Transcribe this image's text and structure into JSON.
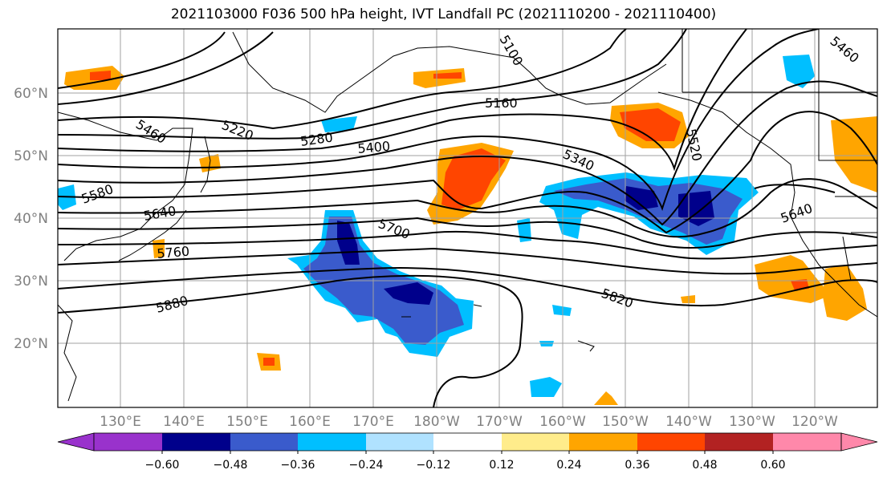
{
  "title": "2021103000 F036 500 hPa height, IVT Landfall PC (2021110200 - 2021110400)",
  "map": {
    "lat_labels": [
      "60°N",
      "50°N",
      "40°N",
      "30°N",
      "20°N"
    ],
    "lon_labels": [
      "130°E",
      "140°E",
      "150°E",
      "160°E",
      "170°E",
      "180°W",
      "170°W",
      "160°W",
      "150°W",
      "140°W",
      "130°W",
      "120°W"
    ],
    "contour_labels": [
      "5160",
      "5220",
      "5280",
      "5340",
      "5400",
      "5460",
      "5460",
      "5520",
      "5580",
      "5640",
      "5640",
      "5700",
      "5760",
      "5820",
      "5880",
      "5100"
    ]
  },
  "colorbar": {
    "colors": [
      "#9932cc",
      "#00008b",
      "#3a5bcc",
      "#00bfff",
      "#b0e2ff",
      "#ffffff",
      "#ffec8b",
      "#ffa500",
      "#ff4500",
      "#b22222",
      "#ff88aa"
    ],
    "ticks": [
      "−0.60",
      "−0.48",
      "−0.36",
      "−0.24",
      "−0.12",
      "0.12",
      "0.24",
      "0.36",
      "0.48",
      "0.60"
    ]
  }
}
